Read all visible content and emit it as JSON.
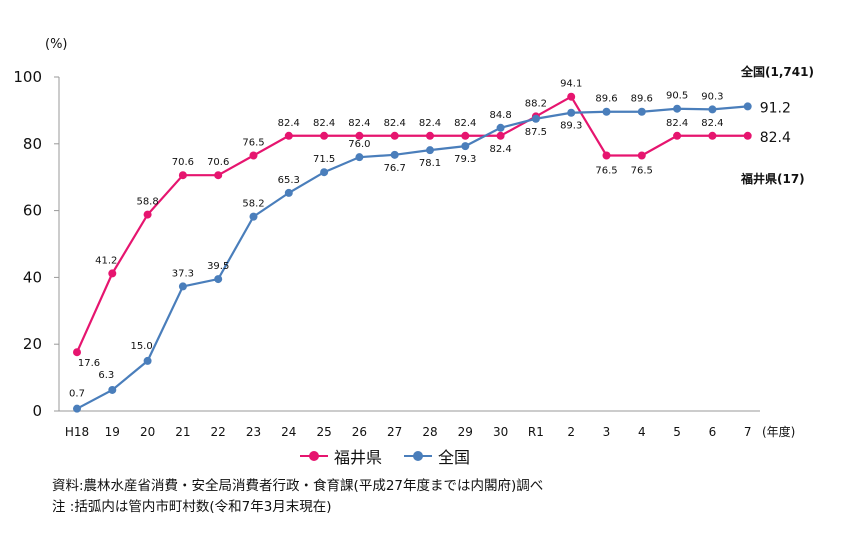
{
  "chart_data": {
    "type": "line",
    "ylabel": "(%)",
    "xlabel": "(年度)",
    "ylim": [
      0,
      100
    ],
    "yticks": [
      0,
      20,
      40,
      60,
      80,
      100
    ],
    "categories": [
      "H18",
      "19",
      "20",
      "21",
      "22",
      "23",
      "24",
      "25",
      "26",
      "27",
      "28",
      "29",
      "30",
      "R1",
      "2",
      "3",
      "4",
      "5",
      "6",
      "7"
    ],
    "series": [
      {
        "name": "福井県",
        "color": "#e6156f",
        "values": [
          17.6,
          41.2,
          58.8,
          70.6,
          70.6,
          76.5,
          82.4,
          82.4,
          82.4,
          82.4,
          82.4,
          82.4,
          82.4,
          88.2,
          94.1,
          76.5,
          76.5,
          82.4,
          82.4,
          82.4
        ],
        "end_value_label": "82.4",
        "annotation": "福井県(17)"
      },
      {
        "name": "全国",
        "color": "#4a7ebb",
        "values": [
          0.7,
          6.3,
          15.0,
          37.3,
          39.5,
          58.2,
          65.3,
          71.5,
          76.0,
          76.7,
          78.1,
          79.3,
          84.8,
          87.5,
          89.3,
          89.6,
          89.6,
          90.5,
          90.3,
          91.2
        ],
        "end_value_label": "91.2",
        "annotation": "全国(1,741)"
      }
    ],
    "grid": false,
    "legend_position": "bottom"
  },
  "notes": [
    "資料:農林水産省消費・安全局消費者行政・食育課(平成27年度までは内閣府)調べ",
    "注 :括弧内は管内市町村数(令和7年3月末現在)"
  ]
}
